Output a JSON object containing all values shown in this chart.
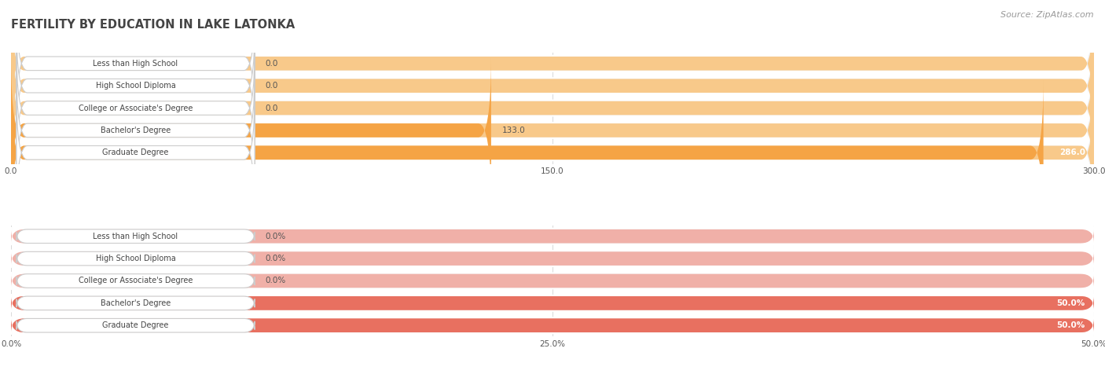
{
  "title": "FERTILITY BY EDUCATION IN LAKE LATONKA",
  "source": "Source: ZipAtlas.com",
  "top_chart": {
    "categories": [
      "Less than High School",
      "High School Diploma",
      "College or Associate's Degree",
      "Bachelor's Degree",
      "Graduate Degree"
    ],
    "values": [
      0.0,
      0.0,
      0.0,
      133.0,
      286.0
    ],
    "xlim": [
      0,
      300
    ],
    "xticks": [
      0.0,
      150.0,
      300.0
    ],
    "xtick_labels": [
      "0.0",
      "150.0",
      "300.0"
    ],
    "bar_color_light": "#f8c98a",
    "bar_color_dark": "#f5a445",
    "row_bg": "#eeeeee"
  },
  "bottom_chart": {
    "categories": [
      "Less than High School",
      "High School Diploma",
      "College or Associate's Degree",
      "Bachelor's Degree",
      "Graduate Degree"
    ],
    "values": [
      0.0,
      0.0,
      0.0,
      50.0,
      50.0
    ],
    "xlim": [
      0,
      50
    ],
    "xticks": [
      0.0,
      25.0,
      50.0
    ],
    "xtick_labels": [
      "0.0%",
      "25.0%",
      "50.0%"
    ],
    "bar_color_light": "#f0b0a8",
    "bar_color_dark": "#e87060",
    "row_bg": "#eeeeee"
  },
  "bg_color": "#ffffff",
  "label_text_color": "#444444",
  "value_text_color": "#555555",
  "title_color": "#444444",
  "source_color": "#999999",
  "grid_color": "#cccccc",
  "label_bg": "#ffffff",
  "label_border": "#cccccc"
}
